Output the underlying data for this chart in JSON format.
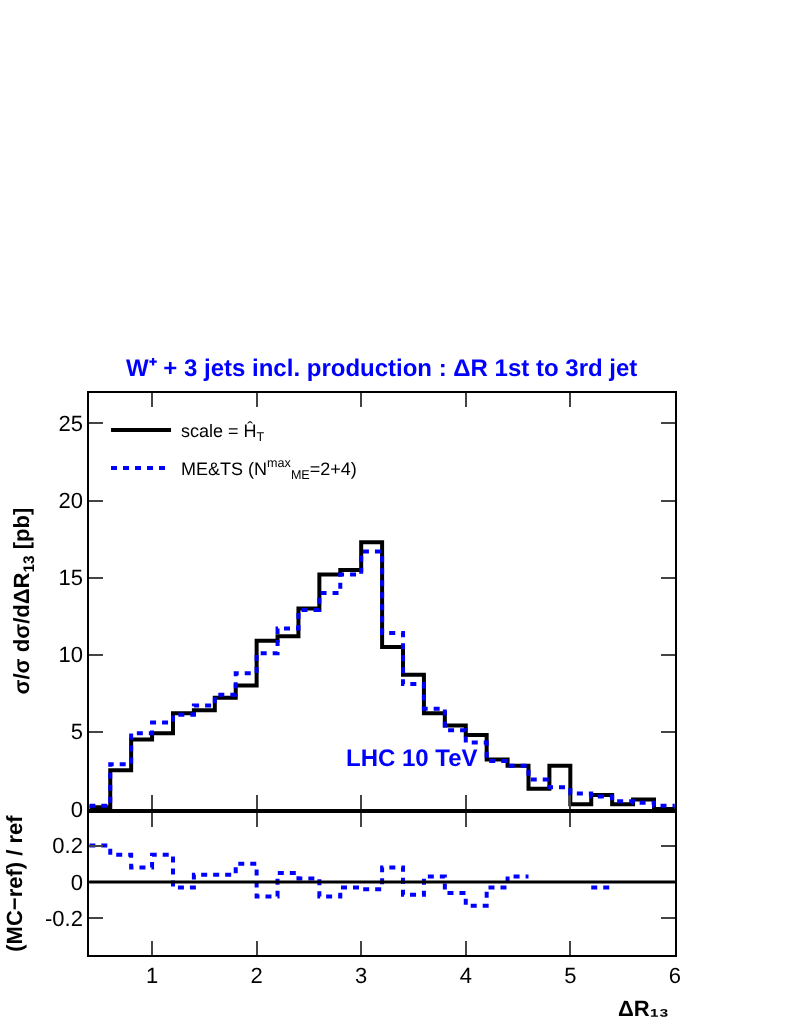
{
  "chart_data": [
    {
      "type": "histogram",
      "title": "W⁺ + 3 jets incl. production : ΔR 1st to 3rd jet",
      "ylabel": "σ/σ dσ/dΔR$_{13}$ [pb]",
      "annotations": [
        "LHC 10 TeV"
      ],
      "bins": [
        0.4,
        0.6,
        0.8,
        1.0,
        1.2,
        1.4,
        1.6,
        1.8,
        2.0,
        2.2,
        2.4,
        2.6,
        2.8,
        3.0,
        3.2,
        3.4,
        3.6,
        3.8,
        4.0,
        4.2,
        4.4,
        4.6,
        4.8,
        5.0,
        5.2,
        5.4,
        5.6,
        5.8,
        6.0
      ],
      "series": [
        {
          "name": "scale = Ĥ$_{T}$",
          "color": "#000000",
          "line_style": "solid",
          "values": [
            0.1,
            2.5,
            4.5,
            4.9,
            6.2,
            6.4,
            7.2,
            8.0,
            10.9,
            11.2,
            13.0,
            15.2,
            15.5,
            17.3,
            10.5,
            8.7,
            6.2,
            5.4,
            4.8,
            3.2,
            2.8,
            1.3,
            2.8,
            0.3,
            0.9,
            0.3,
            0.6,
            0.0
          ]
        },
        {
          "name": "ME&TS (N$^{max}$$_{ME}$=2+4)",
          "color": "#0000ff",
          "line_style": "dotted",
          "values": [
            0.2,
            2.9,
            4.9,
            5.6,
            6.1,
            6.7,
            7.4,
            8.8,
            10.1,
            11.7,
            12.9,
            14.0,
            15.2,
            16.7,
            11.4,
            8.1,
            6.5,
            5.1,
            4.3,
            3.1,
            2.8,
            1.9,
            1.4,
            1.0,
            0.8,
            0.5,
            0.4,
            0.2
          ]
        }
      ],
      "xlim": [
        0.4,
        6.0
      ],
      "xticks": [
        1,
        2,
        3,
        4,
        5,
        6
      ],
      "ylim": [
        0,
        27
      ],
      "yticks": [
        0,
        5,
        10,
        15,
        20,
        25
      ],
      "tick_labels": "y",
      "legend": "top left"
    },
    {
      "type": "line",
      "ylabel": "(MC−ref) / ref",
      "xlabel": "ΔR₁₃",
      "series": [
        {
          "color": "#0000ff",
          "line_style": "dotted",
          "x": [
            0.4,
            0.6,
            0.6,
            0.8,
            0.8,
            1.0,
            1.0,
            1.2,
            1.2,
            1.4,
            1.4,
            1.6,
            1.6,
            1.8,
            1.8,
            2.0,
            2.0,
            2.2,
            2.2,
            2.4,
            2.4,
            2.6,
            2.6,
            2.8,
            2.8,
            3.0,
            3.0,
            3.2,
            3.2,
            3.4,
            3.4,
            3.6,
            3.6,
            3.8,
            3.8,
            4.0,
            4.0,
            4.2,
            4.2,
            4.4,
            4.4,
            4.6
          ],
          "values": [
            0.2,
            0.2,
            0.15,
            0.15,
            0.08,
            0.08,
            0.15,
            0.15,
            -0.03,
            -0.03,
            0.04,
            0.04,
            0.04,
            0.04,
            0.1,
            0.1,
            -0.08,
            -0.08,
            0.05,
            0.05,
            0.02,
            0.02,
            -0.08,
            -0.08,
            -0.03,
            -0.03,
            -0.04,
            -0.04,
            0.08,
            0.08,
            -0.07,
            -0.07,
            0.03,
            0.03,
            -0.06,
            -0.06,
            -0.13,
            -0.13,
            -0.03,
            -0.03,
            0.03,
            0.03
          ]
        },
        {
          "color": "#0000ff",
          "line_style": "dotted",
          "x": [
            5.2,
            5.4
          ],
          "values": [
            -0.03,
            -0.03
          ]
        }
      ],
      "ref_lines": [
        {
          "axis": "y",
          "value": 0,
          "color": "#000000"
        }
      ],
      "xlim": [
        0.4,
        6.0
      ],
      "xticks": [
        1,
        2,
        3,
        4,
        5,
        6
      ],
      "ylim": [
        -0.4,
        0.38
      ],
      "yticks": [
        -0.2,
        0,
        0.2
      ]
    }
  ]
}
